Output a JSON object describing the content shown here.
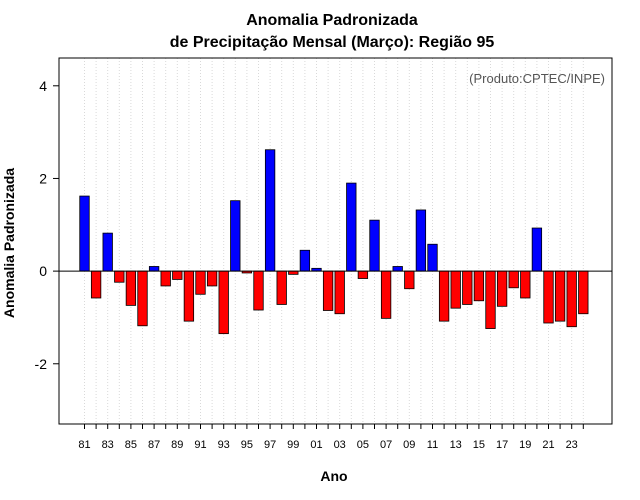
{
  "chart_data": {
    "type": "bar",
    "title": "Anomalia Padronizada",
    "subtitle": "de Precipitação Mensal (Março): Região 95",
    "xlabel": "Ano",
    "ylabel": "Anomalia Padronizada",
    "credit": "(Produto:CPTEC/INPE)",
    "ylim": [
      -3.3,
      4.6
    ],
    "yticks": [
      -2,
      0,
      2,
      4
    ],
    "grid": "vertical-dotted",
    "colors": {
      "positive": "#0000ff",
      "negative": "#ff0000"
    },
    "x": [
      "1981",
      "1982",
      "1983",
      "1984",
      "1985",
      "1986",
      "1987",
      "1988",
      "1989",
      "1990",
      "1991",
      "1992",
      "1993",
      "1994",
      "1995",
      "1996",
      "1997",
      "1998",
      "1999",
      "2000",
      "2001",
      "2002",
      "2003",
      "2004",
      "2005",
      "2006",
      "2007",
      "2008",
      "2009",
      "2010",
      "2011",
      "2012",
      "2013",
      "2014",
      "2015",
      "2016",
      "2017",
      "2018",
      "2019",
      "2020",
      "2021",
      "2022",
      "2023",
      "2024"
    ],
    "xtick_labels": [
      "81",
      "83",
      "85",
      "87",
      "89",
      "91",
      "93",
      "95",
      "97",
      "99",
      "01",
      "03",
      "05",
      "07",
      "09",
      "11",
      "13",
      "15",
      "17",
      "19",
      "21",
      "23"
    ],
    "values": [
      1.62,
      -0.58,
      0.82,
      -0.24,
      -0.74,
      -1.18,
      0.1,
      -0.32,
      -0.18,
      -1.08,
      -0.5,
      -0.32,
      -1.35,
      1.52,
      -0.04,
      -0.84,
      2.62,
      -0.72,
      -0.07,
      0.45,
      0.06,
      -0.85,
      -0.92,
      1.9,
      -0.16,
      1.1,
      -1.02,
      0.1,
      -0.38,
      1.32,
      0.58,
      -1.08,
      -0.8,
      -0.72,
      -0.64,
      -1.24,
      -0.76,
      -0.36,
      -0.58,
      0.93,
      -1.12,
      -1.08,
      -1.2,
      -0.92
    ]
  }
}
